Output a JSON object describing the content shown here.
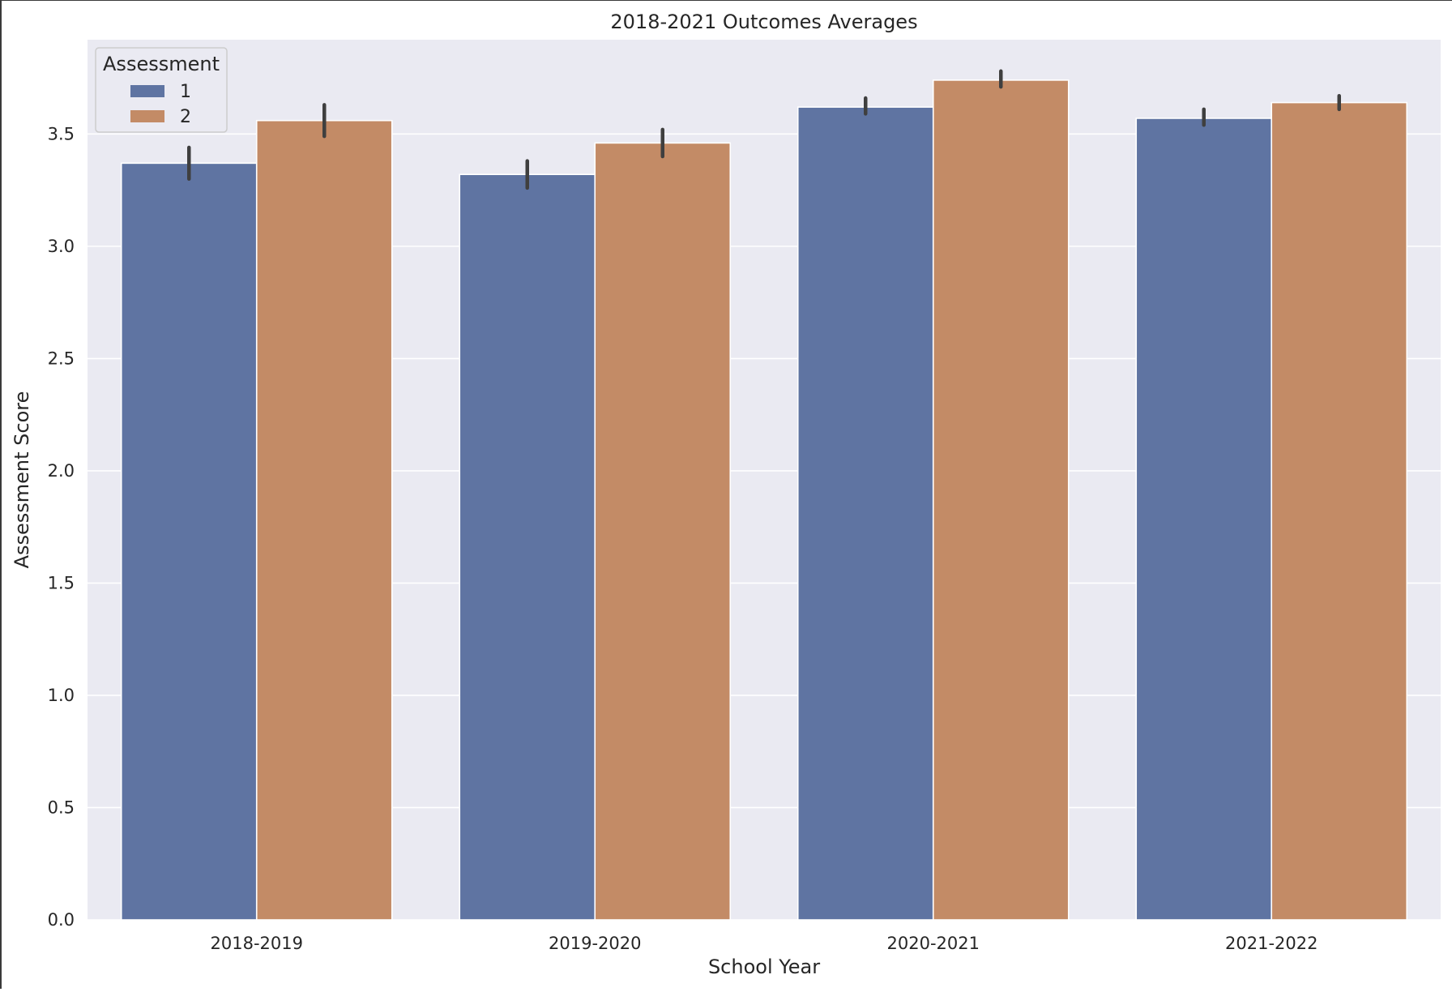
{
  "chart_data": {
    "type": "bar",
    "title": "2018-2021 Outcomes Averages",
    "xlabel": "School Year",
    "ylabel": "Assessment Score",
    "categories": [
      "2018-2019",
      "2019-2020",
      "2020-2021",
      "2021-2022"
    ],
    "series": [
      {
        "name": "1",
        "color": "#5F74A2",
        "values": [
          3.37,
          3.32,
          3.62,
          3.57
        ],
        "ci_low": [
          3.3,
          3.26,
          3.59,
          3.54
        ],
        "ci_high": [
          3.44,
          3.38,
          3.66,
          3.61
        ]
      },
      {
        "name": "2",
        "color": "#C38B66",
        "values": [
          3.56,
          3.46,
          3.74,
          3.64
        ],
        "ci_low": [
          3.49,
          3.4,
          3.71,
          3.61
        ],
        "ci_high": [
          3.63,
          3.52,
          3.78,
          3.67
        ]
      }
    ],
    "ylim": [
      0,
      3.92
    ],
    "yticks": [
      "0.0",
      "0.5",
      "1.0",
      "1.5",
      "2.0",
      "2.5",
      "3.0",
      "3.5"
    ],
    "legend": {
      "title": "Assessment",
      "placement": "top-left"
    },
    "grid": true,
    "background": "#EAEAF2",
    "gridColor": "#FFFFFF",
    "errorBarColor": "#3F3F3F"
  }
}
